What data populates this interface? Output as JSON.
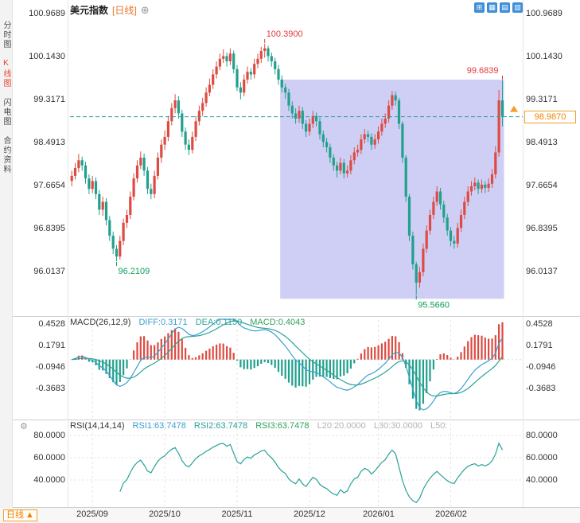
{
  "app": {
    "title": "美元指数",
    "period_tag": "[日线]",
    "add_icon": "⊕",
    "icons": {
      "gear": "⚙"
    },
    "toolbar": [
      {
        "name": "layout-grid",
        "glyph": "⊞"
      },
      {
        "name": "layout-multi",
        "glyph": "▦"
      },
      {
        "name": "layout-kline",
        "glyph": "▤"
      },
      {
        "name": "layout-mixed",
        "glyph": "▥"
      }
    ],
    "sidebar": [
      {
        "label": "分时图",
        "active": false
      },
      {
        "label": "K线图",
        "active": true
      },
      {
        "label": "闪电图",
        "active": false
      },
      {
        "label": "合约资料",
        "active": false
      }
    ],
    "bottom": {
      "period_label": "日线",
      "arrow": "▲"
    }
  },
  "colors": {
    "up": "#dd4b42",
    "down": "#21a08c",
    "annotation_red": "#e23b3b",
    "annotation_green": "#0fa05a",
    "diff_line": "#3a9fd0",
    "dea_line": "#2aa198",
    "rsi_line": "#2aa198",
    "selection": "#cfcff5",
    "dashed_line": "#2e9e9e",
    "price_box": "#f0a030",
    "price_text": "#ee8500",
    "active_tab": "#e8432e"
  },
  "chart_data": [
    {
      "type": "candlestick",
      "title": "美元指数 [日线]",
      "y_ticks": [
        "100.9689",
        "100.1430",
        "99.3171",
        "98.4913",
        "97.6654",
        "96.8395",
        "96.0137"
      ],
      "x_ticks": [
        {
          "label": "2025/09",
          "index": 6
        },
        {
          "label": "2025/10",
          "index": 27
        },
        {
          "label": "2025/11",
          "index": 48
        },
        {
          "label": "2025/12",
          "index": 69
        },
        {
          "label": "2026/01",
          "index": 89
        },
        {
          "label": "2026/02",
          "index": 110
        }
      ],
      "ylim": [
        95.26,
        100.97
      ],
      "current_price": "98.9870",
      "annotations": [
        {
          "text": "100.3900",
          "index": 56,
          "price": 100.39,
          "side": "above",
          "align": "start",
          "color": "red"
        },
        {
          "text": "99.6839",
          "index": 125,
          "price": 99.684,
          "side": "above",
          "align": "end",
          "color": "red"
        },
        {
          "text": "96.2109",
          "index": 13,
          "price": 96.211,
          "side": "below",
          "align": "start",
          "color": "green"
        },
        {
          "text": "95.5660",
          "index": 100,
          "price": 95.566,
          "side": "below",
          "align": "start",
          "color": "green"
        }
      ],
      "selection": {
        "from_index": 61,
        "to_index": 126,
        "top_price": 99.7,
        "bottom_price": 95.49
      },
      "candles": [
        [
          97.75,
          97.95,
          97.65,
          97.85
        ],
        [
          97.85,
          98.1,
          97.78,
          98.0
        ],
        [
          98.0,
          98.27,
          97.92,
          98.15
        ],
        [
          98.15,
          98.22,
          97.95,
          98.05
        ],
        [
          98.05,
          98.12,
          97.7,
          97.8
        ],
        [
          97.8,
          97.88,
          97.5,
          97.6
        ],
        [
          97.6,
          97.85,
          97.52,
          97.75
        ],
        [
          97.75,
          97.82,
          97.4,
          97.5
        ],
        [
          97.5,
          97.58,
          97.1,
          97.2
        ],
        [
          97.2,
          97.45,
          97.08,
          97.35
        ],
        [
          97.35,
          97.42,
          96.9,
          97.0
        ],
        [
          97.0,
          97.08,
          96.6,
          96.7
        ],
        [
          96.7,
          96.78,
          96.35,
          96.45
        ],
        [
          96.45,
          96.52,
          96.211,
          96.3
        ],
        [
          96.3,
          96.7,
          96.24,
          96.6
        ],
        [
          96.6,
          97.03,
          96.52,
          96.95
        ],
        [
          96.95,
          97.2,
          96.85,
          97.1
        ],
        [
          97.1,
          97.55,
          97.02,
          97.45
        ],
        [
          97.45,
          97.9,
          97.38,
          97.8
        ],
        [
          97.8,
          98.15,
          97.72,
          98.05
        ],
        [
          98.05,
          98.32,
          97.98,
          98.2
        ],
        [
          98.2,
          98.28,
          97.85,
          97.95
        ],
        [
          97.95,
          98.02,
          97.5,
          97.6
        ],
        [
          97.6,
          97.7,
          97.4,
          97.5
        ],
        [
          97.5,
          97.95,
          97.42,
          97.85
        ],
        [
          97.85,
          98.3,
          97.78,
          98.2
        ],
        [
          98.2,
          98.55,
          98.1,
          98.45
        ],
        [
          98.45,
          98.72,
          98.35,
          98.6
        ],
        [
          98.6,
          99.0,
          98.52,
          98.9
        ],
        [
          98.9,
          99.25,
          98.82,
          99.15
        ],
        [
          99.15,
          99.42,
          99.05,
          99.3
        ],
        [
          99.3,
          99.38,
          98.95,
          99.05
        ],
        [
          99.05,
          99.12,
          98.6,
          98.7
        ],
        [
          98.7,
          98.78,
          98.35,
          98.45
        ],
        [
          98.45,
          98.55,
          98.25,
          98.35
        ],
        [
          98.35,
          98.7,
          98.28,
          98.6
        ],
        [
          98.6,
          99.0,
          98.52,
          98.9
        ],
        [
          98.9,
          99.2,
          98.82,
          99.1
        ],
        [
          99.1,
          99.35,
          99.0,
          99.25
        ],
        [
          99.25,
          99.55,
          99.18,
          99.45
        ],
        [
          99.45,
          99.72,
          99.38,
          99.6
        ],
        [
          99.6,
          99.9,
          99.52,
          99.8
        ],
        [
          99.8,
          100.05,
          99.72,
          99.95
        ],
        [
          99.95,
          100.2,
          99.88,
          100.1
        ],
        [
          100.1,
          100.28,
          100.02,
          100.15
        ],
        [
          100.15,
          100.22,
          99.95,
          100.05
        ],
        [
          100.05,
          100.3,
          99.98,
          100.2
        ],
        [
          100.2,
          100.26,
          99.82,
          99.9
        ],
        [
          99.9,
          99.98,
          99.48,
          99.55
        ],
        [
          99.55,
          99.65,
          99.32,
          99.45
        ],
        [
          99.45,
          99.8,
          99.38,
          99.7
        ],
        [
          99.7,
          99.95,
          99.62,
          99.85
        ],
        [
          99.85,
          99.92,
          99.7,
          99.8
        ],
        [
          99.8,
          100.1,
          99.72,
          100.0
        ],
        [
          100.0,
          100.2,
          99.92,
          100.1
        ],
        [
          100.1,
          100.33,
          100.02,
          100.25
        ],
        [
          100.25,
          100.39,
          100.12,
          100.3
        ],
        [
          100.3,
          100.35,
          100.05,
          100.15
        ],
        [
          100.15,
          100.22,
          99.95,
          100.05
        ],
        [
          100.05,
          100.12,
          99.8,
          99.9
        ],
        [
          99.9,
          99.98,
          99.6,
          99.7
        ],
        [
          99.7,
          99.78,
          99.45,
          99.55
        ],
        [
          99.55,
          99.62,
          99.33,
          99.45
        ],
        [
          99.45,
          99.52,
          99.1,
          99.2
        ],
        [
          99.2,
          99.28,
          98.95,
          99.05
        ],
        [
          99.05,
          99.15,
          98.85,
          98.95
        ],
        [
          98.95,
          99.2,
          98.87,
          99.1
        ],
        [
          99.1,
          99.17,
          98.75,
          98.85
        ],
        [
          98.85,
          98.92,
          98.6,
          98.7
        ],
        [
          98.7,
          98.95,
          98.62,
          98.85
        ],
        [
          98.85,
          99.1,
          98.77,
          99.0
        ],
        [
          99.0,
          99.07,
          98.8,
          98.9
        ],
        [
          98.9,
          98.97,
          98.55,
          98.65
        ],
        [
          98.65,
          98.72,
          98.4,
          98.5
        ],
        [
          98.5,
          98.58,
          98.3,
          98.4
        ],
        [
          98.4,
          98.47,
          98.1,
          98.2
        ],
        [
          98.2,
          98.27,
          97.95,
          98.05
        ],
        [
          98.05,
          98.12,
          97.82,
          97.95
        ],
        [
          97.95,
          98.2,
          97.88,
          98.1
        ],
        [
          98.1,
          98.17,
          97.8,
          97.9
        ],
        [
          97.9,
          98.05,
          97.82,
          97.95
        ],
        [
          97.95,
          98.25,
          97.88,
          98.15
        ],
        [
          98.15,
          98.4,
          98.07,
          98.3
        ],
        [
          98.3,
          98.45,
          98.22,
          98.35
        ],
        [
          98.35,
          98.65,
          98.27,
          98.55
        ],
        [
          98.55,
          98.75,
          98.47,
          98.65
        ],
        [
          98.65,
          98.72,
          98.5,
          98.6
        ],
        [
          98.6,
          98.67,
          98.35,
          98.45
        ],
        [
          98.45,
          98.65,
          98.37,
          98.55
        ],
        [
          98.55,
          98.8,
          98.47,
          98.7
        ],
        [
          98.7,
          98.95,
          98.62,
          98.85
        ],
        [
          98.85,
          99.05,
          98.77,
          98.95
        ],
        [
          98.95,
          99.3,
          98.87,
          99.2
        ],
        [
          99.2,
          99.48,
          99.12,
          99.4
        ],
        [
          99.4,
          99.47,
          99.2,
          99.3
        ],
        [
          99.3,
          99.35,
          98.75,
          98.85
        ],
        [
          98.85,
          98.9,
          98.1,
          98.2
        ],
        [
          98.2,
          98.25,
          97.35,
          97.45
        ],
        [
          97.45,
          97.5,
          96.6,
          96.7
        ],
        [
          96.7,
          96.78,
          96.05,
          96.15
        ],
        [
          96.15,
          96.2,
          95.566,
          95.8
        ],
        [
          95.8,
          96.1,
          95.7,
          96.0
        ],
        [
          96.0,
          96.55,
          95.92,
          96.45
        ],
        [
          96.45,
          96.9,
          96.37,
          96.8
        ],
        [
          96.8,
          97.2,
          96.72,
          97.1
        ],
        [
          97.1,
          97.45,
          97.02,
          97.35
        ],
        [
          97.35,
          97.65,
          97.27,
          97.55
        ],
        [
          97.55,
          97.62,
          97.2,
          97.3
        ],
        [
          97.3,
          97.37,
          96.95,
          97.05
        ],
        [
          97.05,
          97.12,
          96.7,
          96.8
        ],
        [
          96.8,
          96.87,
          96.5,
          96.6
        ],
        [
          96.6,
          96.7,
          96.45,
          96.55
        ],
        [
          96.55,
          96.95,
          96.47,
          96.85
        ],
        [
          96.85,
          97.2,
          96.77,
          97.1
        ],
        [
          97.1,
          97.45,
          97.02,
          97.35
        ],
        [
          97.35,
          97.65,
          97.27,
          97.55
        ],
        [
          97.55,
          97.75,
          97.47,
          97.65
        ],
        [
          97.65,
          97.82,
          97.57,
          97.72
        ],
        [
          97.72,
          97.78,
          97.5,
          97.6
        ],
        [
          97.6,
          97.78,
          97.52,
          97.68
        ],
        [
          97.68,
          97.75,
          97.52,
          97.62
        ],
        [
          97.62,
          97.8,
          97.54,
          97.7
        ],
        [
          97.7,
          97.98,
          97.62,
          97.88
        ],
        [
          97.88,
          98.42,
          97.8,
          98.3
        ],
        [
          98.3,
          99.5,
          98.22,
          99.3
        ],
        [
          99.3,
          99.684,
          98.8,
          98.987
        ]
      ]
    },
    {
      "type": "macd",
      "label": "MACD(26,12,9)",
      "params": [
        26,
        12,
        9
      ],
      "values": {
        "diff": "DIFF:0.3171",
        "dea": "DEA:0.1150",
        "macd": "MACD:0.4043"
      },
      "y_ticks": [
        "0.4528",
        "0.1791",
        "-0.0946",
        "-0.3683"
      ],
      "ylim": [
        -0.75,
        0.52
      ]
    },
    {
      "type": "line",
      "label": "RSI(14,14,14)",
      "period": 14,
      "values": {
        "rsi1": "RSI1:63.7478",
        "rsi2": "RSI2:63.7478",
        "rsi3": "RSI3:63.7478",
        "l20": "L20:20.0000",
        "l30": "L30:30.0000",
        "l50": "L50:"
      },
      "y_ticks": [
        "80.0000",
        "60.0000",
        "40.0000"
      ],
      "ylim": [
        17,
        91
      ]
    }
  ]
}
